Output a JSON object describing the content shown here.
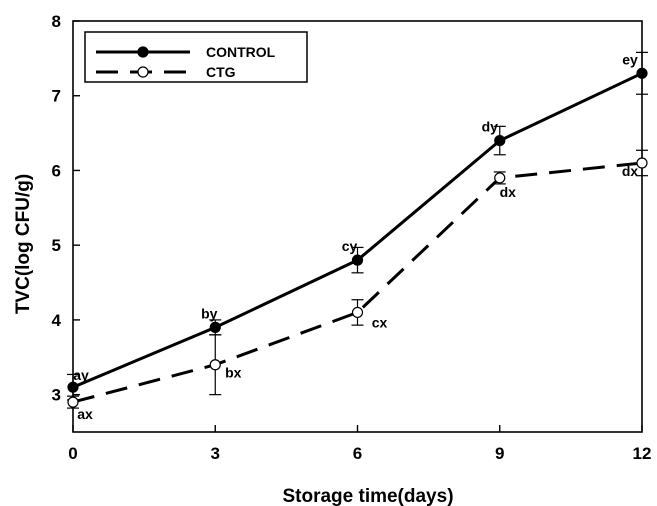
{
  "chart_data": {
    "type": "line",
    "x": [
      0,
      3,
      6,
      9,
      12
    ],
    "xlabel": "Storage time(days)",
    "ylabel": "TVC(log CFU/g)",
    "xlim": [
      0,
      12
    ],
    "ylim": [
      2.5,
      8
    ],
    "x_ticks": [
      "0",
      "3",
      "6",
      "9",
      "12"
    ],
    "y_ticks": [
      "3",
      "4",
      "5",
      "6",
      "7",
      "8"
    ],
    "grid": false,
    "legend_position": "top-left",
    "series": [
      {
        "name": "CONTROL",
        "line_style": "solid",
        "marker": "filled-circle",
        "values": [
          3.1,
          3.9,
          4.8,
          6.4,
          7.3
        ],
        "errors": [
          0.17,
          0.1,
          0.17,
          0.19,
          0.28
        ],
        "labels": [
          "ay",
          "by",
          "cy",
          "dy",
          "ey"
        ]
      },
      {
        "name": "CTG",
        "line_style": "dashed",
        "marker": "open-circle",
        "values": [
          2.9,
          3.4,
          4.1,
          5.9,
          6.1
        ],
        "errors": [
          0.08,
          0.4,
          0.17,
          0.08,
          0.17
        ],
        "labels": [
          "ax",
          "bx",
          "cx",
          "dx",
          "dx"
        ]
      }
    ]
  }
}
